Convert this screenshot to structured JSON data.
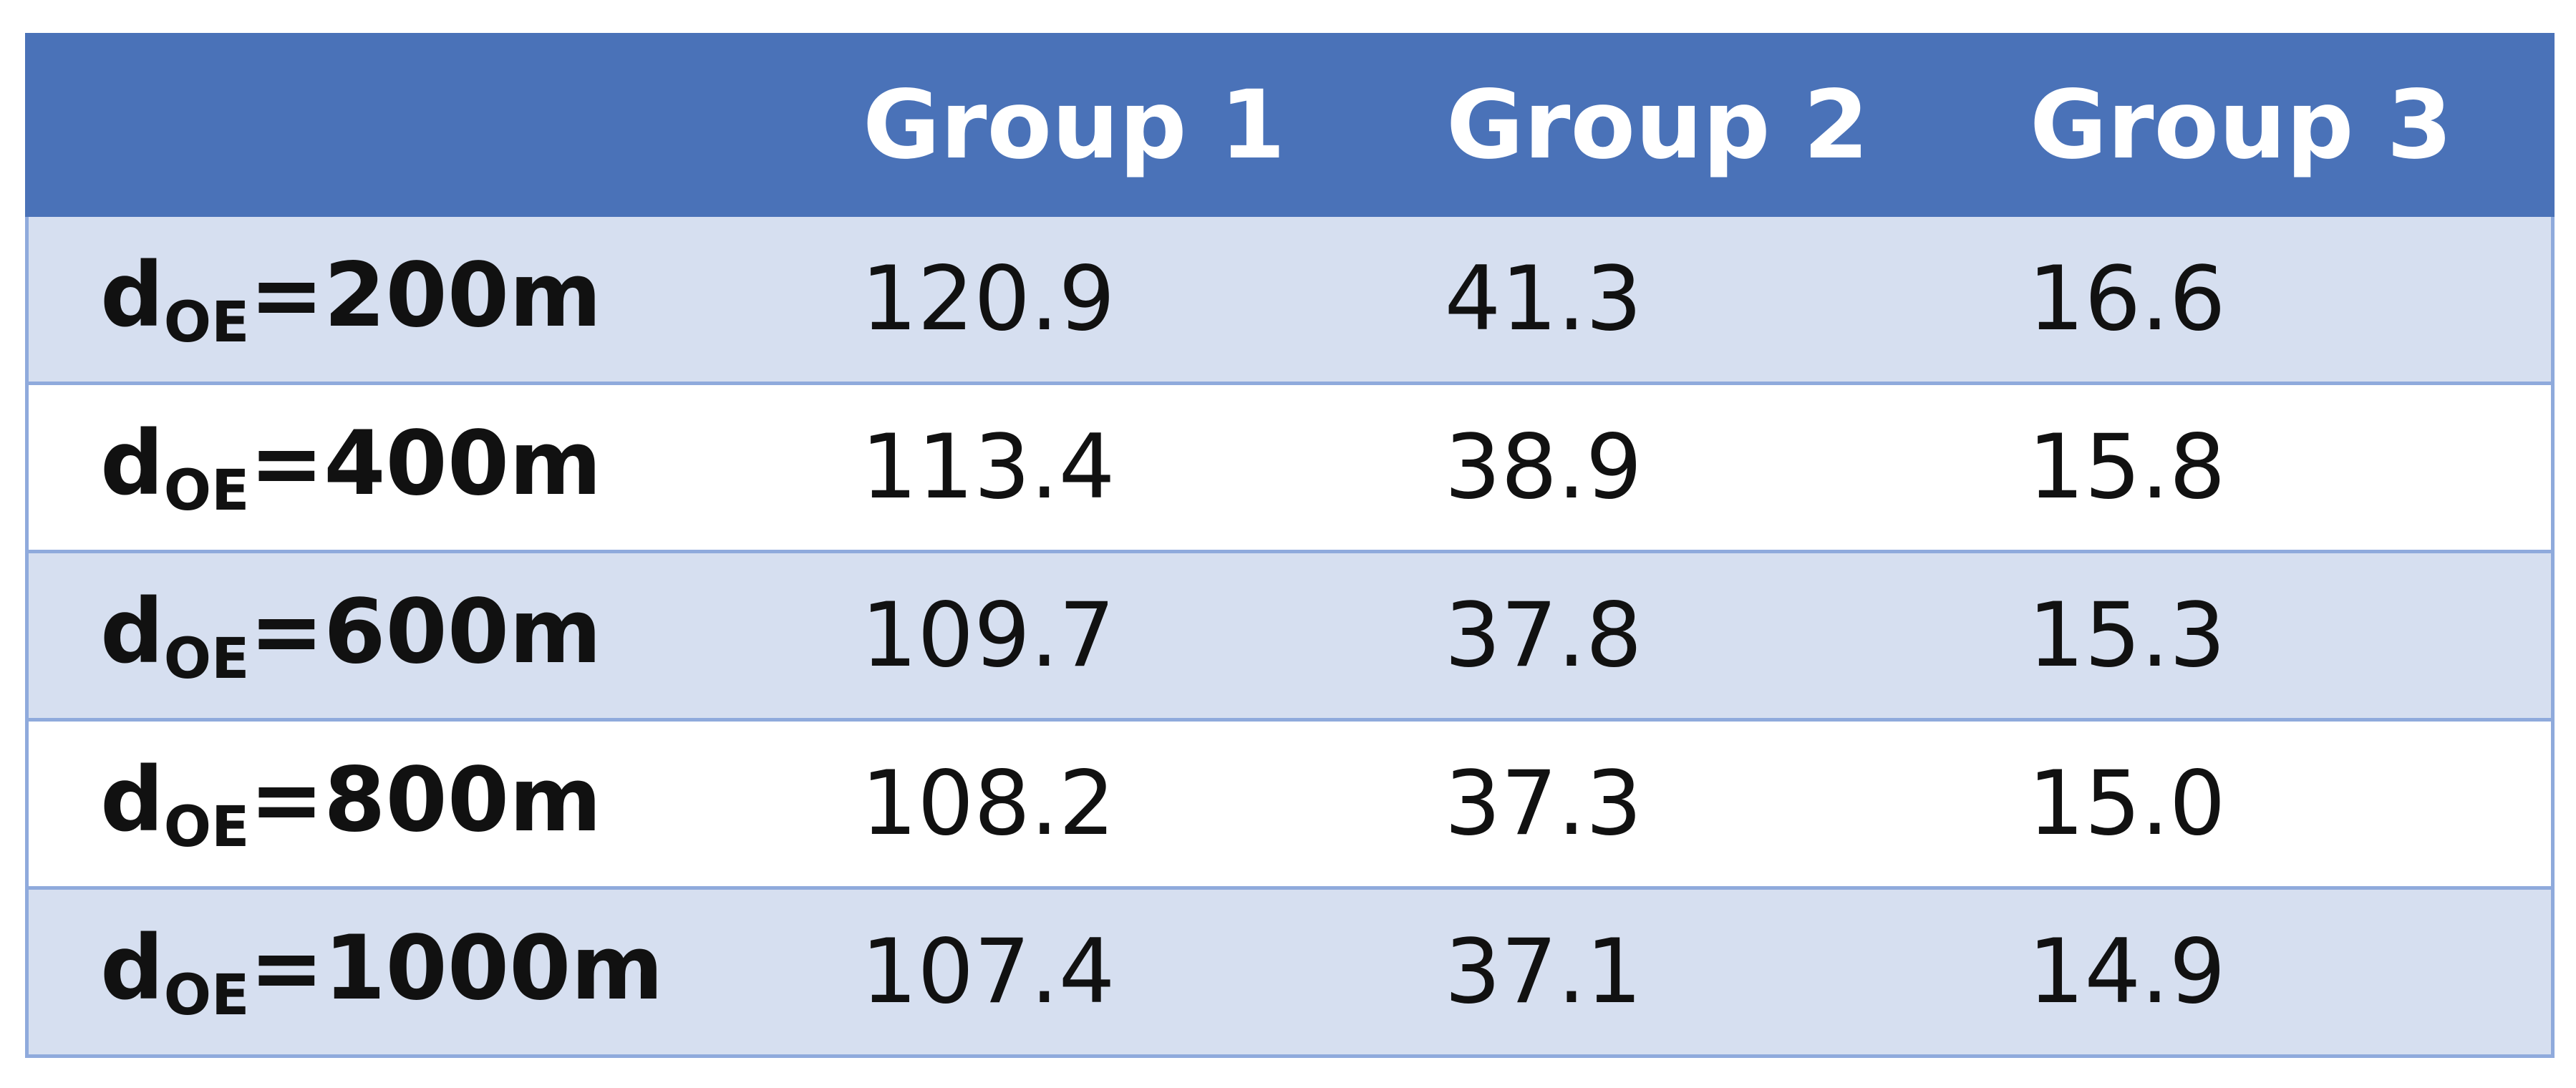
{
  "table": {
    "columns": [
      "Group 1",
      "Group 2",
      "Group 3"
    ],
    "rows": [
      {
        "label": {
          "base": "d",
          "sub": "OE",
          "rest": "=200m"
        },
        "values": [
          "120.9",
          "41.3",
          "16.6"
        ]
      },
      {
        "label": {
          "base": "d",
          "sub": "OE",
          "rest": "=400m"
        },
        "values": [
          "113.4",
          "38.9",
          "15.8"
        ]
      },
      {
        "label": {
          "base": "d",
          "sub": "OE",
          "rest": "=600m"
        },
        "values": [
          "109.7",
          "37.8",
          "15.3"
        ]
      },
      {
        "label": {
          "base": "d",
          "sub": "OE",
          "rest": "=800m"
        },
        "values": [
          "108.2",
          "37.3",
          "15.0"
        ]
      },
      {
        "label": {
          "base": "d",
          "sub": "OE",
          "rest": "=1000m"
        },
        "values": [
          "107.4",
          "37.1",
          "14.9"
        ]
      }
    ]
  }
}
